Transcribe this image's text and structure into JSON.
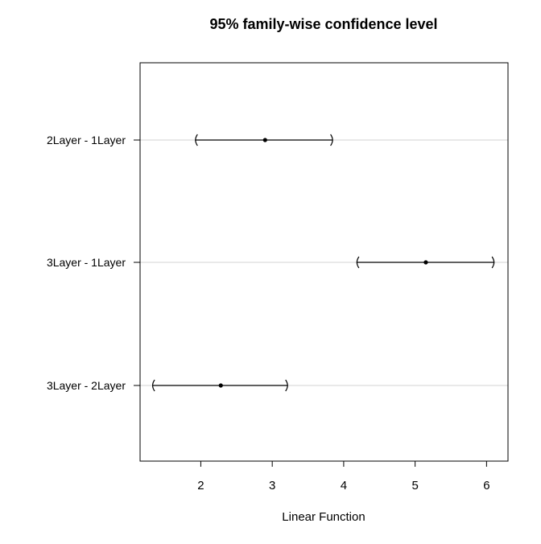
{
  "chart_data": {
    "type": "interval",
    "title": "95% family-wise confidence level",
    "xlabel": "Linear Function",
    "ylabel": "",
    "xlim": [
      1.15,
      6.3
    ],
    "x_ticks": [
      2,
      3,
      4,
      5,
      6
    ],
    "grid": "horizontal",
    "series": [
      {
        "comparisons": [
          "2Layer - 1Layer",
          "3Layer - 1Layer",
          "3Layer - 2Layer"
        ],
        "estimate": [
          2.9,
          5.15,
          2.28
        ],
        "lower": [
          1.92,
          4.18,
          1.32
        ],
        "upper": [
          3.85,
          6.11,
          3.22
        ]
      }
    ]
  }
}
